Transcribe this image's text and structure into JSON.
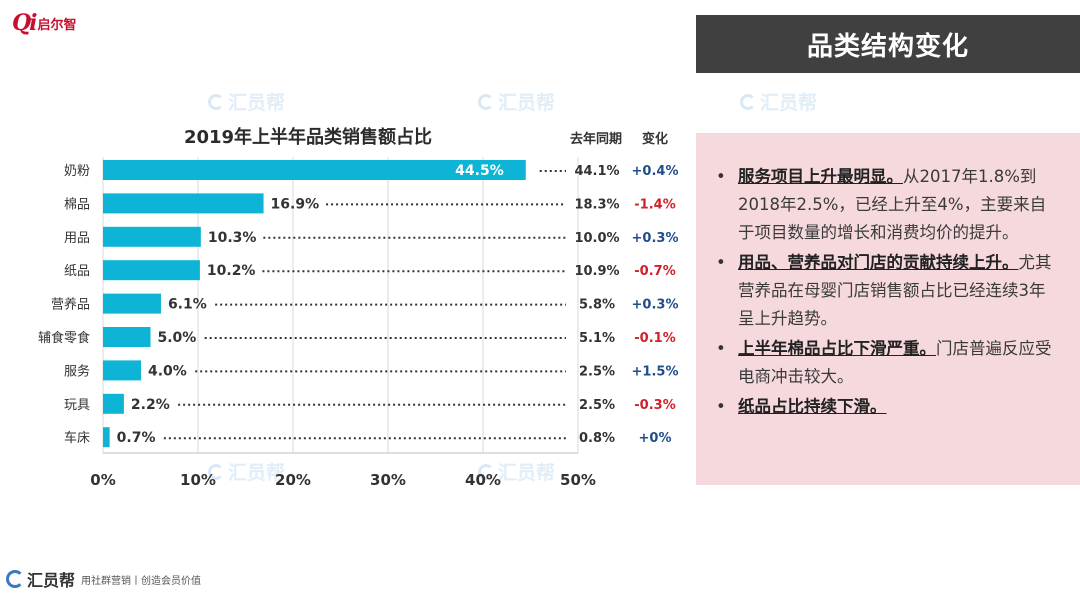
{
  "logo": {
    "mark": "Qi",
    "text": "启尔智"
  },
  "title": "品类结构变化",
  "watermark": {
    "text": "汇员帮"
  },
  "chart_data": {
    "type": "bar",
    "orientation": "horizontal",
    "title": "2019年上半年品类销售额占比",
    "categories": [
      "奶粉",
      "棉品",
      "用品",
      "纸品",
      "营养品",
      "辅食零食",
      "服务",
      "玩具",
      "车床"
    ],
    "values": [
      44.5,
      16.9,
      10.3,
      10.2,
      6.1,
      5.0,
      4.0,
      2.2,
      0.7
    ],
    "value_labels": [
      "44.5%",
      "16.9%",
      "10.3%",
      "10.2%",
      "6.1%",
      "5.0%",
      "4.0%",
      "2.2%",
      "0.7%"
    ],
    "xlim": [
      0,
      50
    ],
    "xticks": [
      "0%",
      "10%",
      "20%",
      "30%",
      "40%",
      "50%"
    ],
    "grid": true,
    "bar_color": "#0eb4d6",
    "table": {
      "headers": [
        "去年同期",
        "变化"
      ],
      "last_year": [
        "44.1%",
        "18.3%",
        "10.0%",
        "10.9%",
        "5.8%",
        "5.1%",
        "2.5%",
        "2.5%",
        "0.8%"
      ],
      "change": [
        "+0.4%",
        "-1.4%",
        "+0.3%",
        "-0.7%",
        "+0.3%",
        "-0.1%",
        "+1.5%",
        "-0.3%",
        "+0%"
      ],
      "positive_color": "#1f4e8c",
      "negative_color": "#d0202a"
    }
  },
  "notes": [
    {
      "bold": "服务项目上升最明显。",
      "text": "从2017年1.8%到2018年2.5%，已经上升至4%，主要来自于项目数量的增长和消费均价的提升。"
    },
    {
      "bold": "用品、营养品对门店的贡献持续上升。",
      "text": "尤其营养品在母婴门店销售额占比已经连续3年呈上升趋势。"
    },
    {
      "bold": "上半年棉品占比下滑严重。",
      "text": "门店普遍反应受电商冲击较大。"
    },
    {
      "bold": "纸品占比持续下滑。",
      "text": ""
    }
  ],
  "bullet": "•",
  "footer": {
    "brand": "汇员帮",
    "slogan": "用社群营销丨创造会员价值"
  }
}
